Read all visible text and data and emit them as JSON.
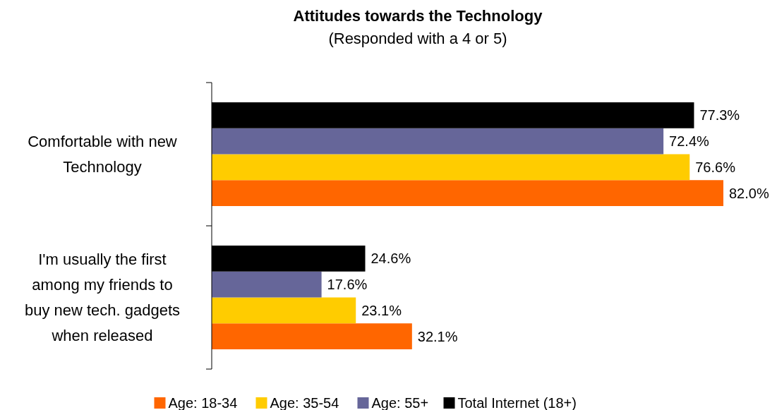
{
  "chart_data": {
    "type": "bar",
    "orientation": "horizontal",
    "title": "Attitudes towards the Technology",
    "subtitle": "(Responded with a 4 or 5)",
    "categories": [
      "Comfortable with new Technology",
      "I'm usually the first among my friends to buy new tech. gadgets when released"
    ],
    "series": [
      {
        "name": "Age: 18-34",
        "color": "#ff6600",
        "values": [
          82.0,
          32.1
        ],
        "value_labels": [
          "82.0%",
          "32.1%"
        ]
      },
      {
        "name": "Age: 35-54",
        "color": "#ffcc00",
        "values": [
          76.6,
          23.1
        ],
        "value_labels": [
          "76.6%",
          "23.1%"
        ]
      },
      {
        "name": "Age: 55+",
        "color": "#666699",
        "values": [
          72.4,
          17.6
        ],
        "value_labels": [
          "72.4%",
          "17.6%"
        ]
      },
      {
        "name": "Total Internet (18+)",
        "color": "#000000",
        "values": [
          77.3,
          24.6
        ],
        "value_labels": [
          "77.3%",
          "24.6%"
        ]
      }
    ],
    "legend": "bottom"
  }
}
